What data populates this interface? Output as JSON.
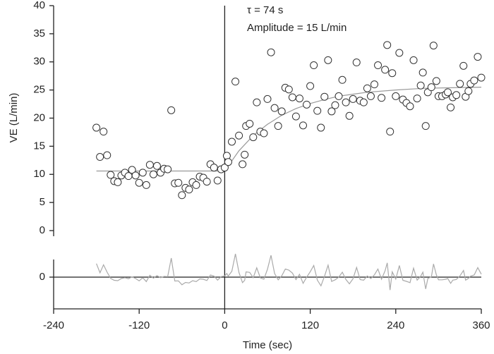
{
  "chart_data": [
    {
      "type": "scatter",
      "ylabel": "VE (L/min)",
      "annotations": [
        "τ = 74 s",
        "Amplitude = 15 L/min"
      ],
      "x": [
        -180,
        -175,
        -170,
        -165,
        -160,
        -155,
        -150,
        -145,
        -140,
        -135,
        -130,
        -125,
        -120,
        -115,
        -110,
        -105,
        -100,
        -95,
        -90,
        -85,
        -80,
        -75,
        -70,
        -65,
        -60,
        -55,
        -50,
        -45,
        -40,
        -35,
        -30,
        -25,
        -20,
        -15,
        -10,
        -5,
        0,
        3,
        5,
        10,
        15,
        20,
        25,
        28,
        30,
        35,
        40,
        45,
        50,
        55,
        60,
        65,
        70,
        75,
        80,
        85,
        90,
        95,
        100,
        105,
        110,
        115,
        120,
        125,
        130,
        135,
        140,
        145,
        150,
        155,
        160,
        165,
        170,
        175,
        180,
        185,
        190,
        195,
        200,
        205,
        210,
        215,
        220,
        225,
        228,
        232,
        235,
        240,
        245,
        250,
        255,
        260,
        265,
        270,
        275,
        278,
        282,
        285,
        290,
        293,
        297,
        300,
        305,
        310,
        313,
        317,
        320,
        325,
        330,
        335,
        338,
        342,
        345,
        350,
        355,
        360
      ],
      "values": [
        18.3,
        13.1,
        17.6,
        13.4,
        9.9,
        8.8,
        8.6,
        9.8,
        10.3,
        9.7,
        10.8,
        9.8,
        8.5,
        10.3,
        8.1,
        11.7,
        10.0,
        11.5,
        10.3,
        11.0,
        10.9,
        21.4,
        8.4,
        8.5,
        6.3,
        7.6,
        7.3,
        8.6,
        8.1,
        9.6,
        9.4,
        8.7,
        11.8,
        11.2,
        8.9,
        10.9,
        11.2,
        13.3,
        12.2,
        15.8,
        26.5,
        16.9,
        11.8,
        13.5,
        18.6,
        19.0,
        16.6,
        22.8,
        17.6,
        17.3,
        23.4,
        31.7,
        21.8,
        18.6,
        21.2,
        25.4,
        25.1,
        23.7,
        20.3,
        23.5,
        18.7,
        22.4,
        25.7,
        29.4,
        21.3,
        18.3,
        23.8,
        30.3,
        21.2,
        22.3,
        23.9,
        26.8,
        22.8,
        20.4,
        23.4,
        29.9,
        23.1,
        22.8,
        25.3,
        23.9,
        26.0,
        29.4,
        23.6,
        28.6,
        33.0,
        17.6,
        28.0,
        23.9,
        31.6,
        23.3,
        22.7,
        22.1,
        30.3,
        23.5,
        25.8,
        28.1,
        18.6,
        24.6,
        25.5,
        32.9,
        26.6,
        23.9,
        23.9,
        24.2,
        24.6,
        21.9,
        23.7,
        24.1,
        26.1,
        29.3,
        23.8,
        24.8,
        26.1,
        26.7,
        30.9,
        27.2
      ],
      "fit": {
        "x": [
          -180,
          0,
          20,
          40,
          60,
          80,
          100,
          120,
          140,
          160,
          200,
          240,
          280,
          320,
          360
        ],
        "values": [
          10.6,
          10.6,
          14.2,
          16.9,
          18.9,
          20.5,
          21.7,
          22.6,
          23.3,
          23.9,
          24.6,
          25.0,
          25.3,
          25.4,
          25.5
        ],
        "color": "#999999"
      },
      "color": "#333333",
      "xlim": [
        -240,
        360
      ],
      "ylim": [
        0,
        40
      ],
      "yticks": [
        0,
        5,
        10,
        15,
        20,
        25,
        30,
        35,
        40
      ]
    },
    {
      "type": "line",
      "xlabel": "Time (sec)",
      "x": [
        -180,
        -175,
        -170,
        -165,
        -160,
        -155,
        -150,
        -145,
        -140,
        -135,
        -130,
        -125,
        -120,
        -115,
        -110,
        -105,
        -100,
        -95,
        -90,
        -85,
        -80,
        -75,
        -70,
        -65,
        -60,
        -55,
        -50,
        -45,
        -40,
        -35,
        -30,
        -25,
        -20,
        -15,
        -10,
        -5,
        0,
        3,
        5,
        10,
        15,
        20,
        25,
        28,
        30,
        35,
        40,
        45,
        50,
        55,
        60,
        65,
        70,
        75,
        80,
        85,
        90,
        95,
        100,
        105,
        110,
        115,
        120,
        125,
        130,
        135,
        140,
        145,
        150,
        155,
        160,
        165,
        170,
        175,
        180,
        185,
        190,
        195,
        200,
        205,
        210,
        215,
        220,
        225,
        228,
        232,
        235,
        240,
        245,
        250,
        255,
        260,
        265,
        270,
        275,
        278,
        282,
        285,
        290,
        293,
        297,
        300,
        305,
        310,
        313,
        317,
        320,
        325,
        330,
        335,
        338,
        342,
        345,
        350,
        355,
        360
      ],
      "values": [
        7.7,
        2.5,
        7.0,
        2.8,
        -0.7,
        -1.8,
        -2.0,
        -0.8,
        -0.3,
        -0.9,
        0.2,
        -0.8,
        -2.1,
        -0.3,
        -2.5,
        1.1,
        -0.6,
        0.9,
        -0.3,
        0.4,
        0.3,
        10.8,
        -2.2,
        -2.1,
        -4.3,
        -3.0,
        -3.3,
        -2.0,
        -2.5,
        -1.0,
        -1.2,
        -1.9,
        1.2,
        0.6,
        -1.7,
        0.3,
        0.6,
        2.1,
        0.6,
        3.3,
        13.2,
        2.7,
        -3.1,
        -1.8,
        3.0,
        2.7,
        -0.3,
        5.3,
        -0.4,
        -1.2,
        4.5,
        12.4,
        2.1,
        -1.5,
        0.7,
        4.6,
        4.0,
        2.3,
        -1.4,
        1.6,
        -3.5,
        0.0,
        3.1,
        6.6,
        -1.7,
        -4.9,
        0.5,
        6.8,
        -2.4,
        -1.5,
        0.0,
        2.8,
        -1.3,
        -3.8,
        -0.9,
        5.5,
        -1.4,
        -1.7,
        0.7,
        -0.8,
        1.3,
        4.6,
        -1.2,
        3.7,
        8.1,
        -7.3,
        3.0,
        -1.1,
        6.6,
        -1.8,
        -2.4,
        -3.1,
        5.1,
        -1.7,
        0.5,
        2.8,
        -6.7,
        -0.7,
        0.2,
        7.5,
        1.2,
        -1.5,
        -1.5,
        -1.2,
        -0.8,
        -3.5,
        -1.7,
        -1.3,
        0.7,
        3.8,
        -1.7,
        -0.7,
        0.6,
        1.2,
        5.4,
        1.7
      ],
      "color": "#aaaaaa",
      "xlim": [
        -240,
        360
      ],
      "xticks": [
        -240,
        -120,
        0,
        120,
        240,
        360
      ],
      "ylim": [
        -18,
        10
      ],
      "yticks": [
        0
      ]
    }
  ]
}
